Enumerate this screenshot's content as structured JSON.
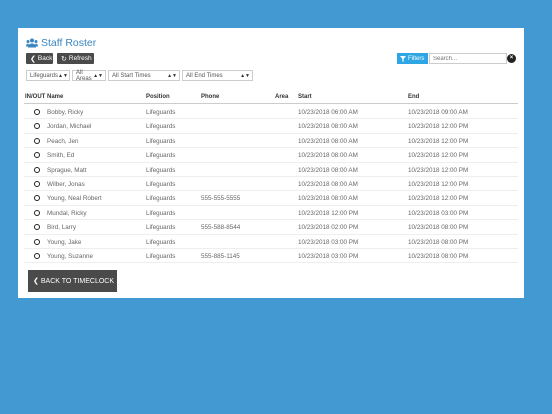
{
  "header": {
    "title": "Staff Roster",
    "title_icon": "users-icon"
  },
  "toolbar": {
    "back_label": "Back",
    "refresh_label": "Refresh",
    "filters_label": "Filters",
    "search_placeholder": "Search..."
  },
  "filters": {
    "position": "Lifeguards",
    "area": "All Areas",
    "start_times": "All Start Times",
    "end_times": "All End Times"
  },
  "table": {
    "columns": [
      "IN/OUT",
      "Name",
      "Position",
      "Phone",
      "Area",
      "Start",
      "End"
    ],
    "rows": [
      {
        "name": "Bobby, Ricky",
        "position": "Lifeguards",
        "phone": "",
        "area": "",
        "start": "10/23/2018 06:00 AM",
        "end": "10/23/2018 09:00 AM"
      },
      {
        "name": "Jordan, Michael",
        "position": "Lifeguards",
        "phone": "",
        "area": "",
        "start": "10/23/2018 08:00 AM",
        "end": "10/23/2018 12:00 PM"
      },
      {
        "name": "Peach, Jen",
        "position": "Lifeguards",
        "phone": "",
        "area": "",
        "start": "10/23/2018 08:00 AM",
        "end": "10/23/2018 12:00 PM"
      },
      {
        "name": "Smith, Ed",
        "position": "Lifeguards",
        "phone": "",
        "area": "",
        "start": "10/23/2018 08:00 AM",
        "end": "10/23/2018 12:00 PM"
      },
      {
        "name": "Sprague, Matt",
        "position": "Lifeguards",
        "phone": "",
        "area": "",
        "start": "10/23/2018 08:00 AM",
        "end": "10/23/2018 12:00 PM"
      },
      {
        "name": "Wilber, Jonas",
        "position": "Lifeguards",
        "phone": "",
        "area": "",
        "start": "10/23/2018 08:00 AM",
        "end": "10/23/2018 12:00 PM"
      },
      {
        "name": "Young, Neal Robert",
        "position": "Lifeguards",
        "phone": "555-555-5555",
        "area": "",
        "start": "10/23/2018 08:00 AM",
        "end": "10/23/2018 12:00 PM"
      },
      {
        "name": "Mundal, Ricky",
        "position": "Lifeguards",
        "phone": "",
        "area": "",
        "start": "10/23/2018 12:00 PM",
        "end": "10/23/2018 03:00 PM"
      },
      {
        "name": "Bird, Larry",
        "position": "Lifeguards",
        "phone": "555-588-8544",
        "area": "",
        "start": "10/23/2018 02:00 PM",
        "end": "10/23/2018 08:00 PM"
      },
      {
        "name": "Young, Jake",
        "position": "Lifeguards",
        "phone": "",
        "area": "",
        "start": "10/23/2018 03:00 PM",
        "end": "10/23/2018 08:00 PM"
      },
      {
        "name": "Young, Suzanne",
        "position": "Lifeguards",
        "phone": "555-885-1145",
        "area": "",
        "start": "10/23/2018 03:00 PM",
        "end": "10/23/2018 08:00 PM"
      }
    ]
  },
  "footer": {
    "back_to_timeclock_label": "BACK TO TIMECLOCK"
  },
  "colors": {
    "background": "#4399d1",
    "title": "#3a86c0",
    "filters_button": "#2ea6e4",
    "dark_button": "#4a4a4a"
  }
}
